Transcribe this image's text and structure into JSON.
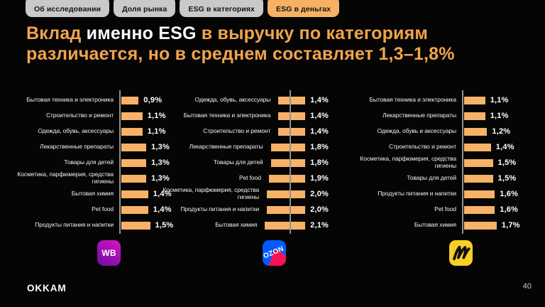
{
  "tabs": [
    {
      "label": "Об исследовании",
      "active": false
    },
    {
      "label": "Доля рынка",
      "active": false
    },
    {
      "label": "ESG в категориях",
      "active": false
    },
    {
      "label": "ESG в деньгах",
      "active": true
    }
  ],
  "title": {
    "seg1": "Вклад ",
    "seg2": "именно ESG",
    "seg3": " в выручку по категориям",
    "seg4": "различается, но в среднем составляет 1,3–1,8%"
  },
  "chart_data": [
    {
      "type": "bar",
      "orientation": "horizontal",
      "marketplace": "Wildberries",
      "unit": "%",
      "xlim": [
        0,
        2.5
      ],
      "categories": [
        "Бытовая техника и электроника",
        "Строительство и ремонт",
        "Одежда, обувь, аксессуары",
        "Лекарственные препараты",
        "Товары для детей",
        "Косметика, парфюмерия, средства гигиены",
        "Бытовая химия",
        "Pet food",
        "Продукты питания и напитки"
      ],
      "values": [
        0.9,
        1.1,
        1.1,
        1.3,
        1.3,
        1.3,
        1.4,
        1.4,
        1.5
      ],
      "labels": [
        "0,9%",
        "1,1%",
        "1,1%",
        "1,3%",
        "1,3%",
        "1,3%",
        "1,4%",
        "1,4%",
        "1,5%"
      ]
    },
    {
      "type": "bar",
      "orientation": "horizontal",
      "marketplace": "Ozon",
      "unit": "%",
      "xlim": [
        0,
        2.5
      ],
      "categories": [
        "Одежда, обувь, аксессуары",
        "Бытовая техника и электроника",
        "Строительство и ремонт",
        "Лекарственные препараты",
        "Товары для детей",
        "Pet food",
        "Косметика, парфюмерия, средства гигиены",
        "Продукты питания и напитки",
        "Бытовая химия"
      ],
      "values": [
        1.4,
        1.4,
        1.4,
        1.8,
        1.8,
        1.9,
        2.0,
        2.0,
        2.1
      ],
      "labels": [
        "1,4%",
        "1,4%",
        "1,4%",
        "1,8%",
        "1,8%",
        "1,9%",
        "2,0%",
        "2,0%",
        "2,1%"
      ]
    },
    {
      "type": "bar",
      "orientation": "horizontal",
      "marketplace": "Яндекс Маркет",
      "unit": "%",
      "xlim": [
        0,
        2.5
      ],
      "categories": [
        "Бытовая техника и электроника",
        "Лекарственные препараты",
        "Одежда, обувь и аксессуары",
        "Строительство и ремонт",
        "Косметика, парфюмерия, средства гигиены",
        "Товары для детей",
        "Продукты питания и напитки",
        "Pet food",
        "Бытовая химия"
      ],
      "values": [
        1.1,
        1.1,
        1.2,
        1.4,
        1.5,
        1.5,
        1.6,
        1.6,
        1.7
      ],
      "labels": [
        "1,1%",
        "1,1%",
        "1,2%",
        "1,4%",
        "1,5%",
        "1,5%",
        "1,6%",
        "1,6%",
        "1,7%"
      ]
    }
  ],
  "logos": {
    "wb": "WB",
    "ozon": "OZON"
  },
  "footer": {
    "brand": "OKKAM",
    "page": "40"
  },
  "colors": {
    "background": "#050505",
    "accent_orange": "#F1A44C",
    "bar_orange": "#F6B269",
    "tab_active": "#F6B164",
    "tab_inactive": "#C9C9C9",
    "axis_gray": "#8F9194",
    "wb_purple": "#A511B4",
    "ozon_blue": "#005BFF",
    "ozon_magenta": "#F91155",
    "market_yellow": "#F9CF25"
  }
}
